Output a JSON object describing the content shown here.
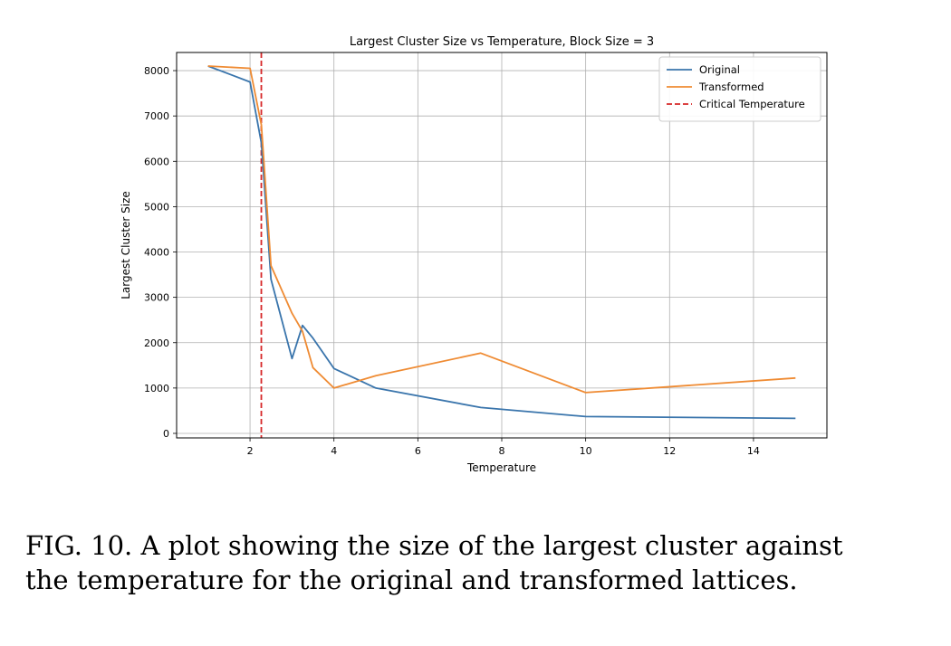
{
  "chart_data": {
    "type": "line",
    "title": "Largest Cluster Size vs Temperature, Block Size = 3",
    "xlabel": "Temperature",
    "ylabel": "Largest Cluster Size",
    "xlim": [
      0.25,
      15.75
    ],
    "ylim": [
      -100,
      8400
    ],
    "xticks": [
      2,
      4,
      6,
      8,
      10,
      12,
      14
    ],
    "yticks": [
      0,
      1000,
      2000,
      3000,
      4000,
      5000,
      6000,
      7000,
      8000
    ],
    "grid": true,
    "legend_position": "top-right",
    "series": [
      {
        "name": "Original",
        "color": "#3a75ac",
        "x": [
          1,
          2,
          2.27,
          2.5,
          3,
          3.25,
          3.5,
          4,
          5,
          7.5,
          10,
          15
        ],
        "y": [
          8100,
          7750,
          6400,
          3400,
          1650,
          2380,
          2100,
          1430,
          1000,
          570,
          370,
          330
        ]
      },
      {
        "name": "Transformed",
        "color": "#ef8b33",
        "x": [
          1,
          2,
          2.27,
          2.5,
          3,
          3.25,
          3.5,
          4,
          5,
          7.5,
          10,
          15
        ],
        "y": [
          8100,
          8050,
          6800,
          3700,
          2650,
          2250,
          1450,
          1000,
          1270,
          1770,
          900,
          1220
        ]
      }
    ],
    "reference_lines": [
      {
        "name": "Critical Temperature",
        "orientation": "vertical",
        "x": 2.269,
        "color": "#d62728",
        "style": "dashed"
      }
    ]
  },
  "caption": {
    "line1": "FIG. 10.  A plot showing the size of the largest cluster against",
    "line2": "the temperature for the original and transformed lattices."
  }
}
